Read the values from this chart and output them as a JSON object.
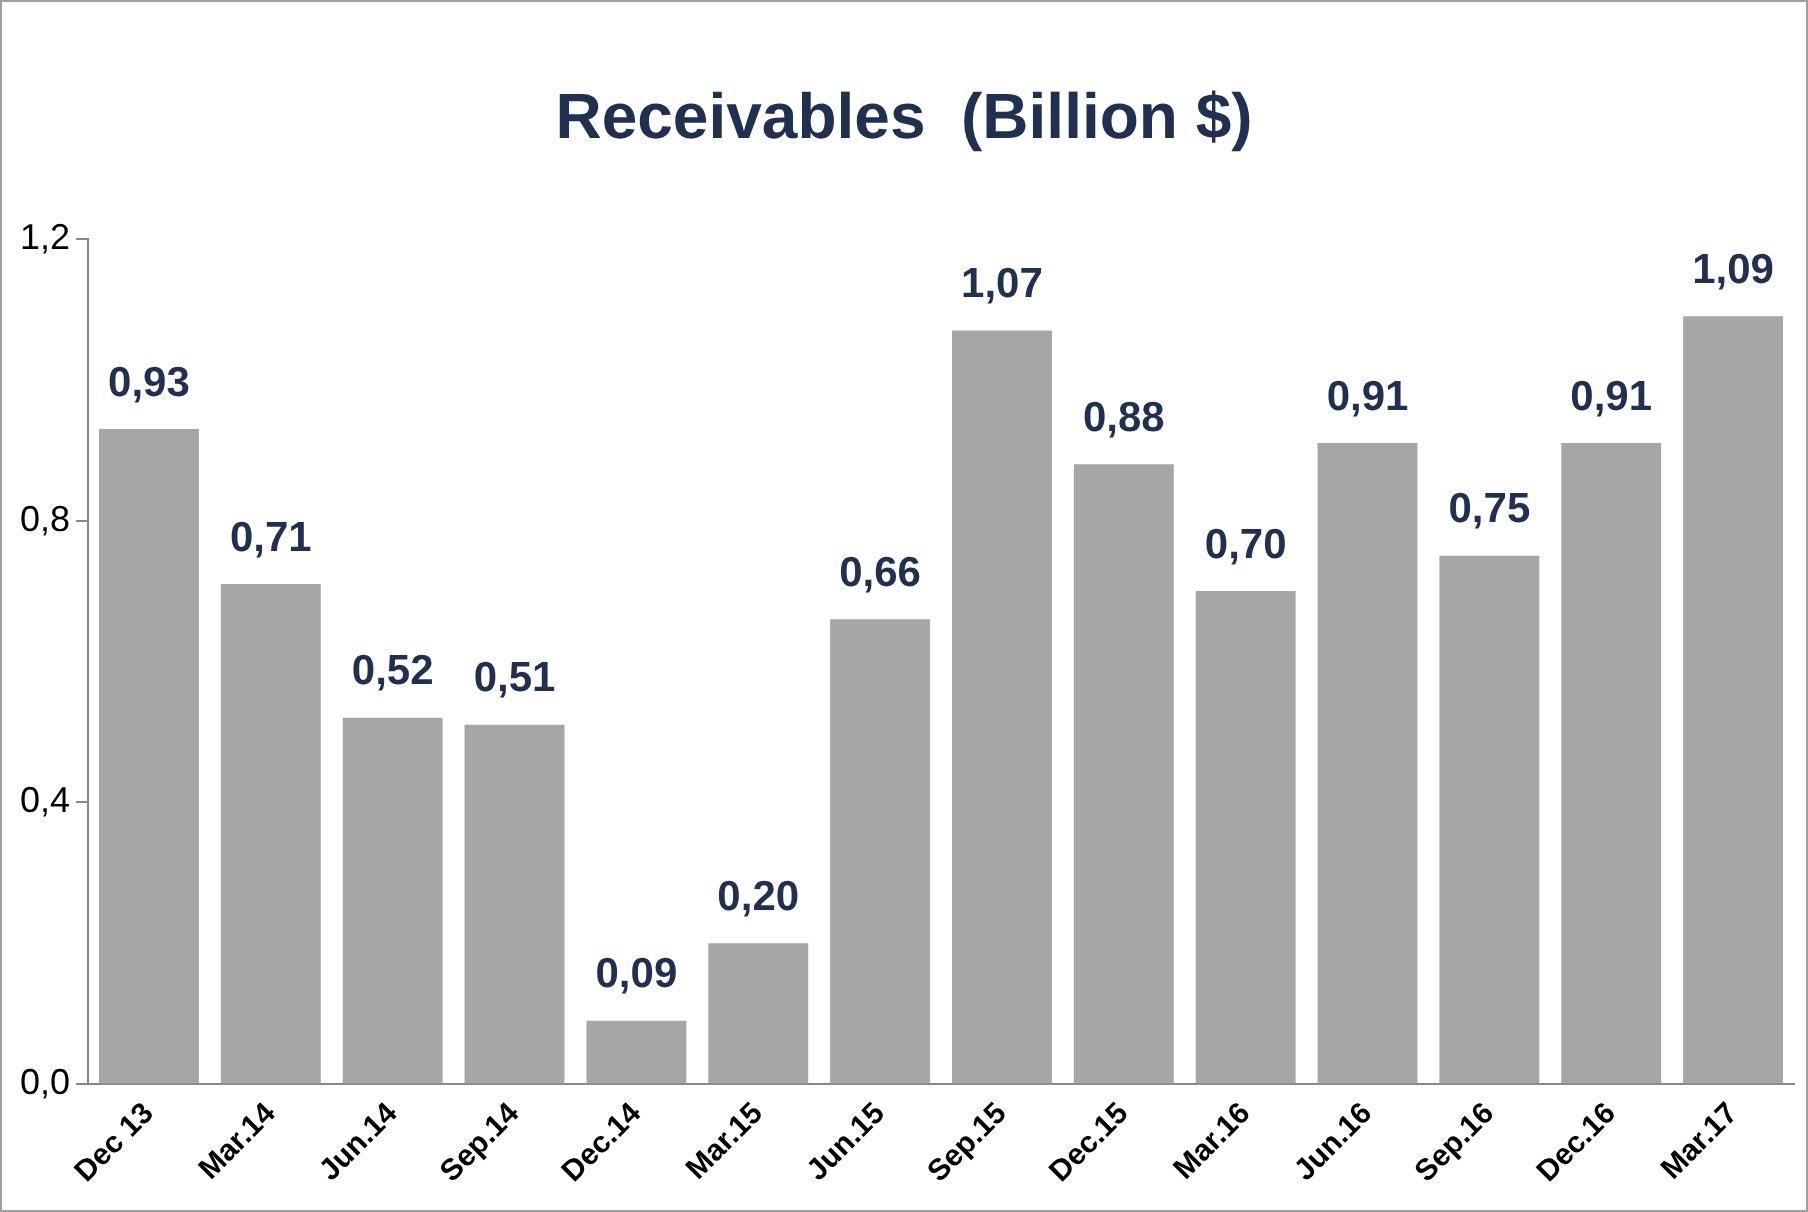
{
  "chart_data": {
    "type": "bar",
    "title": "Receivables  (Billion $)",
    "categories": [
      "Dec 13",
      "Mar.14",
      "Jun.14",
      "Sep.14",
      "Dec.14",
      "Mar.15",
      "Jun.15",
      "Sep.15",
      "Dec.15",
      "Mar.16",
      "Jun.16",
      "Sep.16",
      "Dec.16",
      "Mar.17"
    ],
    "values": [
      0.93,
      0.71,
      0.52,
      0.51,
      0.09,
      0.2,
      0.66,
      1.07,
      0.88,
      0.7,
      0.91,
      0.75,
      0.91,
      1.09
    ],
    "value_labels": [
      "0,93",
      "0,71",
      "0,52",
      "0,51",
      "0,09",
      "0,20",
      "0,66",
      "1,07",
      "0,88",
      "0,70",
      "0,91",
      "0,75",
      "0,91",
      "1,09"
    ],
    "color": "#a6a6a6",
    "ylim": [
      0,
      1.2
    ],
    "yticks": [
      {
        "value": 0,
        "label": "0,0"
      },
      {
        "value": 0.4,
        "label": "0,4"
      },
      {
        "value": 0.8,
        "label": "0,8"
      },
      {
        "value": 1.2,
        "label": "1,2"
      }
    ],
    "grid": false,
    "legend": false
  }
}
